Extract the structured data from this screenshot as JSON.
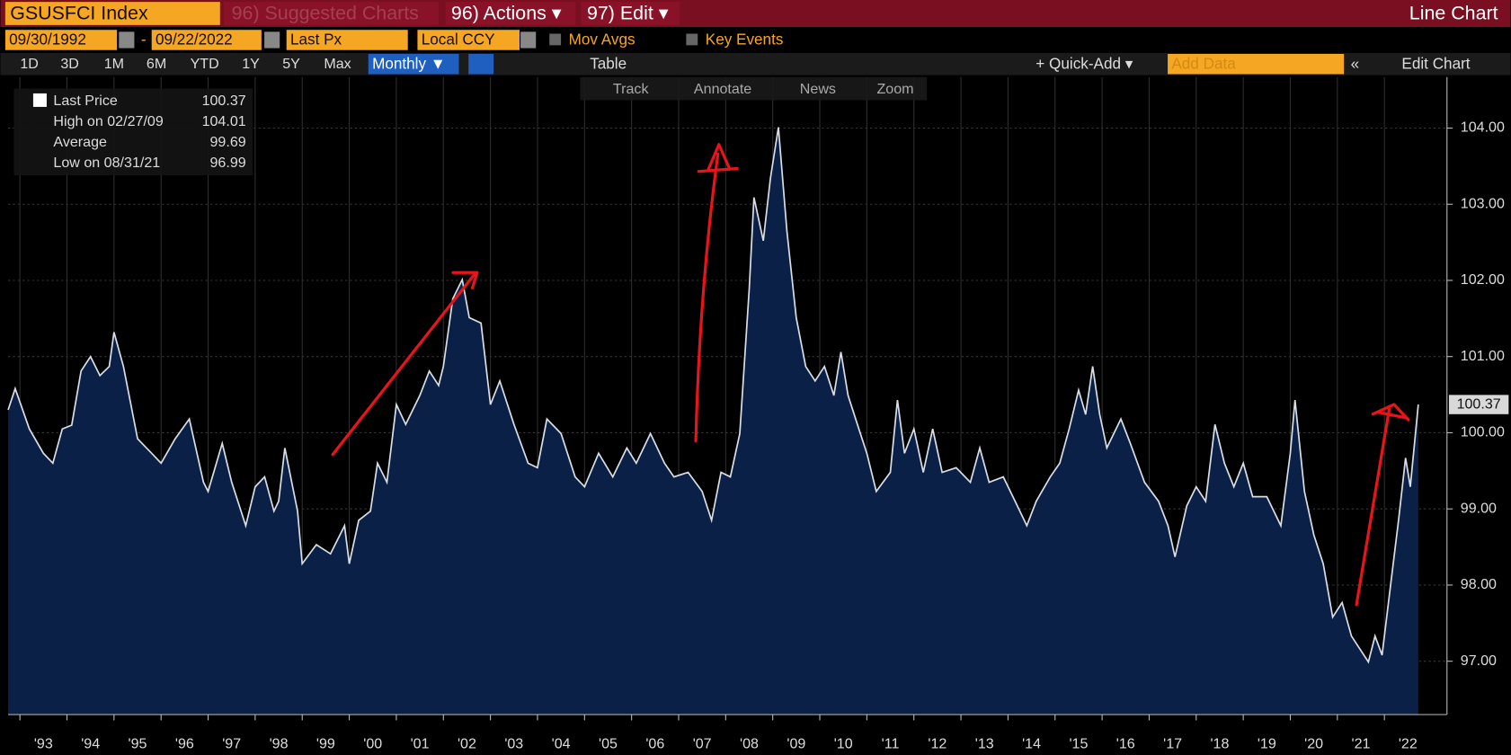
{
  "toolbar": {
    "ticker": "GSUSFCI Index",
    "suggested": "96) Suggested Charts",
    "actions": "96) Actions ▾",
    "edit": "97) Edit ▾",
    "chart_type": "Line Chart",
    "start_date": "09/30/1992",
    "end_date": "09/22/2022",
    "field": "Last Px",
    "currency": "Local CCY",
    "mov_avgs": "Mov Avgs",
    "key_events": "Key Events",
    "periods": [
      "1D",
      "3D",
      "1M",
      "6M",
      "YTD",
      "1Y",
      "5Y",
      "Max"
    ],
    "frequency": "Monthly ▼",
    "table": "Table",
    "quick_add": "+ Quick-Add ▾",
    "add_data": "Add Data",
    "edit_chart": "Edit Chart",
    "tools": [
      "Track",
      "Annotate",
      "News",
      "Zoom"
    ]
  },
  "stats": [
    {
      "label": "Last Price",
      "value": 100.37
    },
    {
      "label": "High on 02/27/09",
      "value": 104.01
    },
    {
      "label": "Average",
      "value": 99.69
    },
    {
      "label": "Low on 08/31/21",
      "value": 96.99
    }
  ],
  "chart_data": {
    "type": "area",
    "x": [
      1992.75,
      1992.9,
      1993.2,
      1993.5,
      1993.7,
      1993.9,
      1994.1,
      1994.3,
      1994.5,
      1994.7,
      1994.9,
      1995.0,
      1995.2,
      1995.5,
      1995.8,
      1996.0,
      1996.3,
      1996.6,
      1996.9,
      1997.0,
      1997.3,
      1997.5,
      1997.8,
      1998.0,
      1998.2,
      1998.4,
      1998.5,
      1998.63,
      1998.9,
      1999.0,
      1999.3,
      1999.6,
      1999.9,
      2000.0,
      2000.2,
      2000.45,
      2000.6,
      2000.8,
      2001.0,
      2001.2,
      2001.5,
      2001.7,
      2001.9,
      2002.0,
      2002.2,
      2002.4,
      2002.55,
      2002.8,
      2003.0,
      2003.2,
      2003.5,
      2003.8,
      2004.0,
      2004.2,
      2004.5,
      2004.8,
      2005.0,
      2005.3,
      2005.6,
      2005.9,
      2006.1,
      2006.4,
      2006.7,
      2006.9,
      2007.2,
      2007.5,
      2007.7,
      2007.9,
      2008.1,
      2008.3,
      2008.5,
      2008.6,
      2008.8,
      2008.95,
      2009.12,
      2009.3,
      2009.5,
      2009.7,
      2009.9,
      2010.1,
      2010.3,
      2010.45,
      2010.6,
      2010.8,
      2011.0,
      2011.2,
      2011.5,
      2011.65,
      2011.8,
      2012.0,
      2012.2,
      2012.4,
      2012.6,
      2012.9,
      2013.2,
      2013.4,
      2013.6,
      2013.9,
      2014.2,
      2014.4,
      2014.6,
      2014.9,
      2015.1,
      2015.3,
      2015.5,
      2015.65,
      2015.8,
      2015.95,
      2016.1,
      2016.4,
      2016.6,
      2016.9,
      2017.2,
      2017.4,
      2017.55,
      2017.8,
      2018.0,
      2018.2,
      2018.4,
      2018.6,
      2018.8,
      2019.0,
      2019.2,
      2019.5,
      2019.8,
      2020.0,
      2020.1,
      2020.3,
      2020.5,
      2020.7,
      2020.9,
      2021.1,
      2021.3,
      2021.66,
      2021.8,
      2021.95,
      2022.1,
      2022.3,
      2022.45,
      2022.55,
      2022.72
    ],
    "series": [
      {
        "name": "Last Price",
        "color": "#d8dde6",
        "fill": "#0b2046",
        "values": [
          100.3,
          100.58,
          100.05,
          99.73,
          99.6,
          100.05,
          100.1,
          100.81,
          101.0,
          100.75,
          100.87,
          101.32,
          100.87,
          99.92,
          99.73,
          99.6,
          99.92,
          100.18,
          99.35,
          99.23,
          99.86,
          99.35,
          98.78,
          99.29,
          99.42,
          98.97,
          99.1,
          99.8,
          98.97,
          98.28,
          98.53,
          98.41,
          98.78,
          98.28,
          98.85,
          98.97,
          99.6,
          99.35,
          100.37,
          100.11,
          100.49,
          100.81,
          100.62,
          100.87,
          101.76,
          102.01,
          101.51,
          101.44,
          100.37,
          100.68,
          100.11,
          99.6,
          99.54,
          100.18,
          99.99,
          99.42,
          99.29,
          99.73,
          99.42,
          99.8,
          99.6,
          99.99,
          99.6,
          99.42,
          99.48,
          99.23,
          98.85,
          99.48,
          99.42,
          99.99,
          101.89,
          103.09,
          102.52,
          103.34,
          104.01,
          102.65,
          101.51,
          100.87,
          100.68,
          100.87,
          100.49,
          101.06,
          100.49,
          100.11,
          99.73,
          99.23,
          99.48,
          100.43,
          99.73,
          100.05,
          99.48,
          100.05,
          99.48,
          99.54,
          99.35,
          99.8,
          99.35,
          99.42,
          99.04,
          98.78,
          99.1,
          99.42,
          99.6,
          100.05,
          100.56,
          100.24,
          100.87,
          100.24,
          99.8,
          100.18,
          99.86,
          99.35,
          99.1,
          98.78,
          98.37,
          99.04,
          99.29,
          99.1,
          100.11,
          99.6,
          99.29,
          99.6,
          99.16,
          99.16,
          98.78,
          99.73,
          100.43,
          99.23,
          98.66,
          98.28,
          97.58,
          97.77,
          97.33,
          96.99,
          97.33,
          97.08,
          97.84,
          98.85,
          99.67,
          99.29,
          100.37
        ]
      }
    ],
    "xlim": [
      1992.75,
      2023.33
    ],
    "xticks": [
      {
        "value": 1993,
        "label": "'93"
      },
      {
        "value": 1994,
        "label": "'94"
      },
      {
        "value": 1995,
        "label": "'95"
      },
      {
        "value": 1996,
        "label": "'96"
      },
      {
        "value": 1997,
        "label": "'97"
      },
      {
        "value": 1998,
        "label": "'98"
      },
      {
        "value": 1999,
        "label": "'99"
      },
      {
        "value": 2000,
        "label": "'00"
      },
      {
        "value": 2001,
        "label": "'01"
      },
      {
        "value": 2002,
        "label": "'02"
      },
      {
        "value": 2003,
        "label": "'03"
      },
      {
        "value": 2004,
        "label": "'04"
      },
      {
        "value": 2005,
        "label": "'05"
      },
      {
        "value": 2006,
        "label": "'06"
      },
      {
        "value": 2007,
        "label": "'07"
      },
      {
        "value": 2008,
        "label": "'08"
      },
      {
        "value": 2009,
        "label": "'09"
      },
      {
        "value": 2010,
        "label": "'10"
      },
      {
        "value": 2011,
        "label": "'11"
      },
      {
        "value": 2012,
        "label": "'12"
      },
      {
        "value": 2013,
        "label": "'13"
      },
      {
        "value": 2014,
        "label": "'14"
      },
      {
        "value": 2015,
        "label": "'15"
      },
      {
        "value": 2016,
        "label": "'16"
      },
      {
        "value": 2017,
        "label": "'17"
      },
      {
        "value": 2018,
        "label": "'18"
      },
      {
        "value": 2019,
        "label": "'19"
      },
      {
        "value": 2020,
        "label": "'20"
      },
      {
        "value": 2021,
        "label": "'21"
      },
      {
        "value": 2022,
        "label": "'22"
      }
    ],
    "ylim": [
      96.3,
      104.67
    ],
    "yticks": [
      {
        "value": 97,
        "label": "97.00"
      },
      {
        "value": 98,
        "label": "98.00"
      },
      {
        "value": 99,
        "label": "99.00"
      },
      {
        "value": 100,
        "label": "100.00"
      },
      {
        "value": 101,
        "label": "101.00"
      },
      {
        "value": 102,
        "label": "102.00"
      },
      {
        "value": 103,
        "label": "103.00"
      },
      {
        "value": 104,
        "label": "104.00"
      }
    ],
    "grid": true
  }
}
